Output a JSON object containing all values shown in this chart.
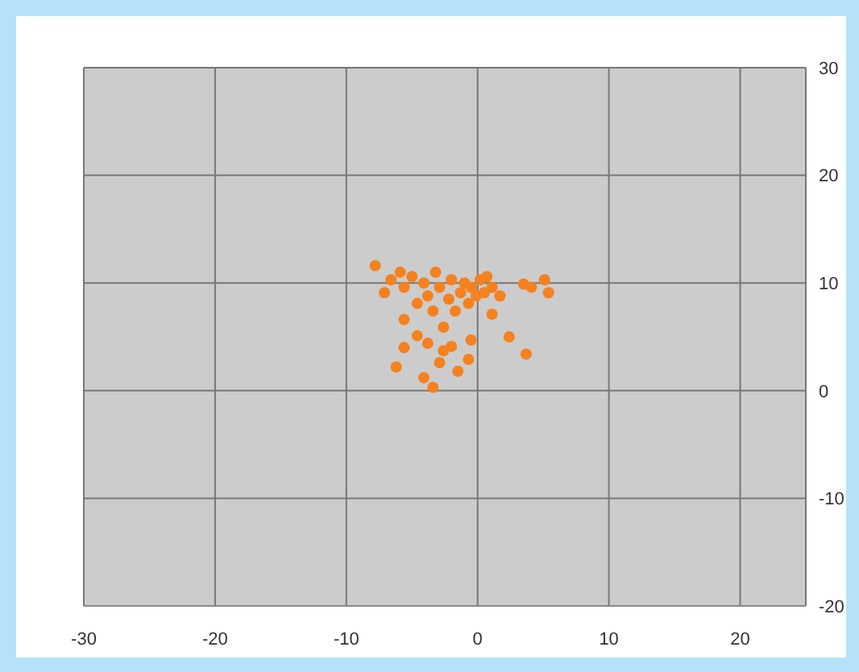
{
  "chart_data": {
    "type": "scatter",
    "xlim": [
      -30,
      25
    ],
    "xticks": [
      -30,
      -20,
      -10,
      0,
      10,
      20
    ],
    "ylim": [
      -20,
      30
    ],
    "yticks": [
      -20,
      -10,
      0,
      10,
      20,
      30
    ],
    "grid": true,
    "marker": "circle",
    "series": [
      {
        "color": "#f5811f",
        "x": [
          -7.8,
          -7.1,
          -6.6,
          -5.9,
          -5.6,
          -5.0,
          -4.6,
          -4.1,
          -3.8,
          -3.4,
          -3.2,
          -2.9,
          -2.6,
          -2.2,
          -2.0,
          -1.7,
          -1.3,
          -1.0,
          -0.7,
          -0.5,
          -0.1,
          0.2,
          0.5,
          0.7,
          1.1,
          1.7,
          1.1,
          2.4,
          3.5,
          4.1,
          5.1,
          5.4,
          3.7,
          -5.6,
          -6.2,
          -4.1,
          -3.4,
          -2.9,
          -2.6,
          -2.0,
          -1.5,
          -0.7,
          -0.5,
          -4.6,
          -5.6,
          -3.8
        ],
        "values": [
          11.6,
          9.1,
          10.3,
          11.0,
          9.6,
          10.6,
          8.1,
          10.0,
          8.8,
          7.4,
          11.0,
          9.6,
          5.9,
          8.5,
          10.3,
          7.4,
          9.1,
          10.0,
          8.1,
          9.6,
          8.8,
          10.3,
          9.1,
          10.6,
          9.6,
          8.8,
          7.1,
          5.0,
          9.9,
          9.6,
          10.3,
          9.1,
          3.4,
          4.0,
          2.2,
          1.2,
          0.3,
          2.6,
          3.7,
          4.1,
          1.8,
          2.9,
          4.7,
          5.1,
          6.6,
          4.4
        ]
      }
    ]
  }
}
